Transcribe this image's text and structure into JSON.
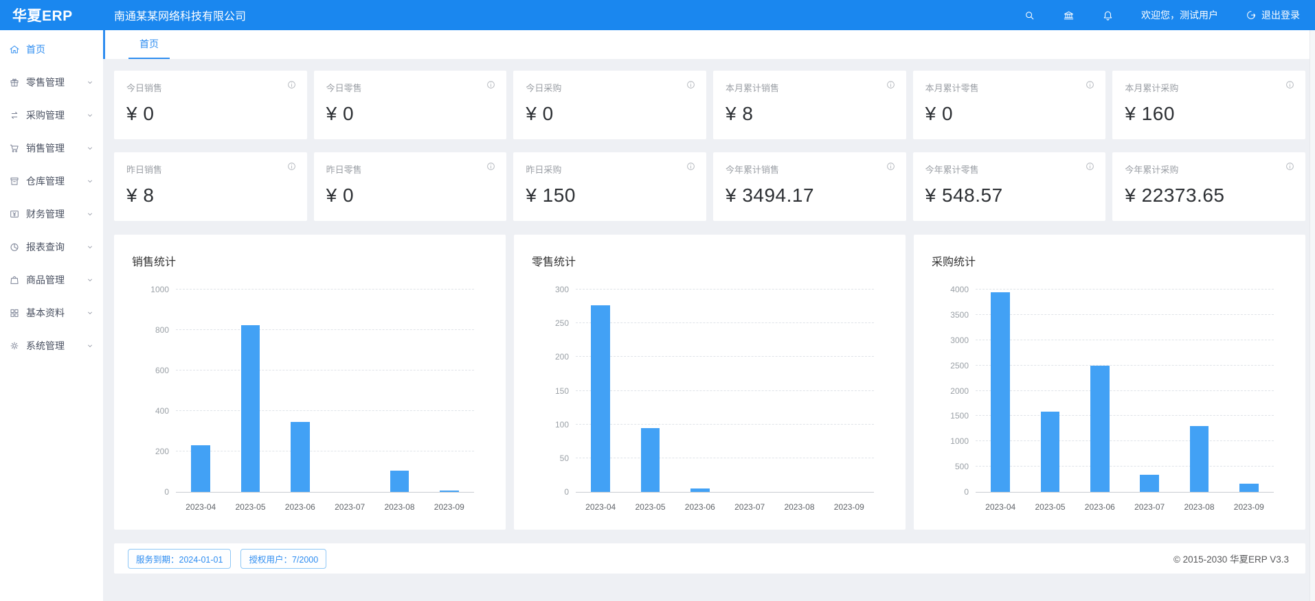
{
  "app": {
    "logo": "华夏ERP",
    "company": "南通某某网络科技有限公司",
    "welcome": "欢迎您，测试用户",
    "logout_label": "退出登录",
    "header_icons": [
      "search-icon",
      "bank-icon",
      "bell-icon"
    ],
    "logout_icon": "logout-icon"
  },
  "colors": {
    "primary": "#1a87ef",
    "link_blue": "#2d8cf0",
    "bar_blue": "#42a1f5",
    "page_bg": "#eef0f4"
  },
  "sidebar": {
    "items": [
      {
        "key": "home",
        "label": "首页",
        "icon": "home-icon",
        "active": true,
        "has_children": false
      },
      {
        "key": "retail",
        "label": "零售管理",
        "icon": "gift-icon",
        "active": false,
        "has_children": true
      },
      {
        "key": "purchase",
        "label": "采购管理",
        "icon": "swap-icon",
        "active": false,
        "has_children": true
      },
      {
        "key": "sales",
        "label": "销售管理",
        "icon": "cart-icon",
        "active": false,
        "has_children": true
      },
      {
        "key": "warehouse",
        "label": "仓库管理",
        "icon": "archive-icon",
        "active": false,
        "has_children": true
      },
      {
        "key": "finance",
        "label": "财务管理",
        "icon": "finance-icon",
        "active": false,
        "has_children": true
      },
      {
        "key": "reports",
        "label": "报表查询",
        "icon": "pie-icon",
        "active": false,
        "has_children": true
      },
      {
        "key": "goods",
        "label": "商品管理",
        "icon": "bag-icon",
        "active": false,
        "has_children": true
      },
      {
        "key": "basic",
        "label": "基本资料",
        "icon": "grid-icon",
        "active": false,
        "has_children": true
      },
      {
        "key": "system",
        "label": "系统管理",
        "icon": "gear-icon",
        "active": false,
        "has_children": true
      }
    ]
  },
  "tabbar": {
    "tabs": [
      {
        "label": "首页",
        "active": true
      }
    ]
  },
  "stats": {
    "info_icon": "info-icon",
    "rows": [
      [
        {
          "label": "今日销售",
          "value": "¥ 0"
        },
        {
          "label": "今日零售",
          "value": "¥ 0"
        },
        {
          "label": "今日采购",
          "value": "¥ 0"
        },
        {
          "label": "本月累计销售",
          "value": "¥ 8"
        },
        {
          "label": "本月累计零售",
          "value": "¥ 0"
        },
        {
          "label": "本月累计采购",
          "value": "¥ 160"
        }
      ],
      [
        {
          "label": "昨日销售",
          "value": "¥ 8"
        },
        {
          "label": "昨日零售",
          "value": "¥ 0"
        },
        {
          "label": "昨日采购",
          "value": "¥ 150"
        },
        {
          "label": "今年累计销售",
          "value": "¥ 3494.17"
        },
        {
          "label": "今年累计零售",
          "value": "¥ 548.57"
        },
        {
          "label": "今年累计采购",
          "value": "¥ 22373.65"
        }
      ]
    ]
  },
  "chart_data": [
    {
      "type": "bar",
      "title": "销售统计",
      "categories": [
        "2023-04",
        "2023-05",
        "2023-06",
        "2023-07",
        "2023-08",
        "2023-09"
      ],
      "values": [
        230,
        825,
        345,
        0,
        105,
        8
      ],
      "ylim": [
        0,
        1000
      ],
      "yticks": [
        0,
        200,
        400,
        600,
        800,
        1000
      ],
      "grid": true,
      "legend": "none",
      "bar_color": "#42a1f5"
    },
    {
      "type": "bar",
      "title": "零售统计",
      "categories": [
        "2023-04",
        "2023-05",
        "2023-06",
        "2023-07",
        "2023-08",
        "2023-09"
      ],
      "values": [
        277,
        95,
        5,
        0,
        0,
        0
      ],
      "ylim": [
        0,
        300
      ],
      "yticks": [
        0,
        50,
        100,
        150,
        200,
        250,
        300
      ],
      "grid": true,
      "legend": "none",
      "bar_color": "#42a1f5"
    },
    {
      "type": "bar",
      "title": "采购统计",
      "categories": [
        "2023-04",
        "2023-05",
        "2023-06",
        "2023-07",
        "2023-08",
        "2023-09"
      ],
      "values": [
        3950,
        1580,
        2500,
        340,
        1300,
        160
      ],
      "ylim": [
        0,
        4000
      ],
      "yticks": [
        0,
        500,
        1000,
        1500,
        2000,
        2500,
        3000,
        3500,
        4000
      ],
      "grid": true,
      "legend": "none",
      "bar_color": "#42a1f5"
    }
  ],
  "footer": {
    "badges": [
      "服务到期：2024-01-01",
      "授权用户：7/2000"
    ],
    "copyright": "© 2015-2030 华夏ERP V3.3"
  }
}
